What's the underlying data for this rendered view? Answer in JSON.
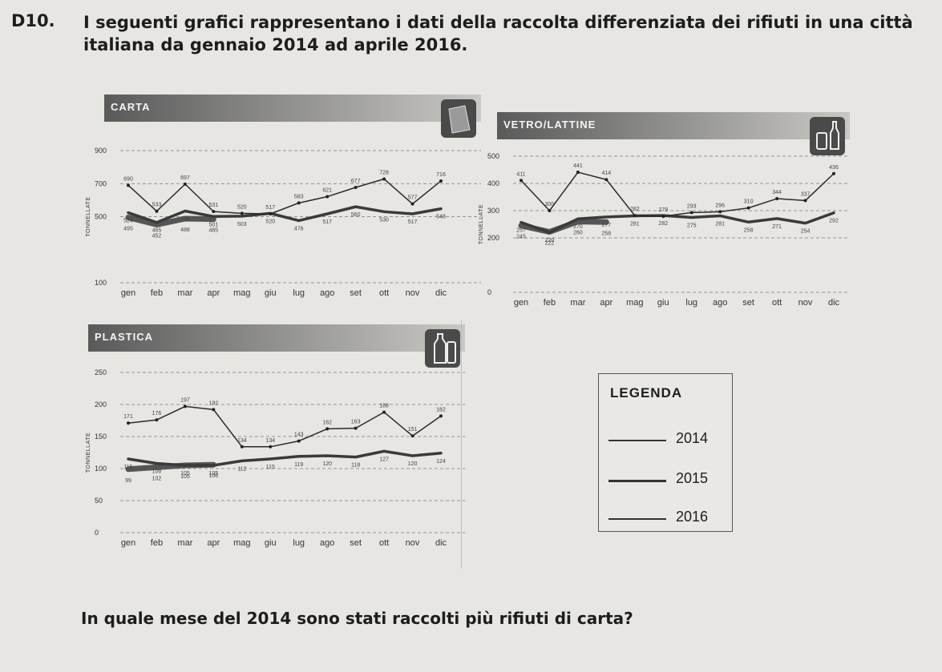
{
  "header": {
    "number": "D10.",
    "text": "I seguenti grafici rappresentano i dati della raccolta differenziata dei rifiuti in una città italiana da gennaio 2014 ad aprile 2016."
  },
  "question": "In quale mese del 2014 sono stati raccolti più rifiuti di carta?",
  "legend": {
    "title": "LEGENDA",
    "items": [
      {
        "year": "2014",
        "weight": 1.5
      },
      {
        "year": "2015",
        "weight": 3
      },
      {
        "year": "2016",
        "weight": 6
      }
    ]
  },
  "chart_data": [
    {
      "type": "line",
      "title": "CARTA",
      "ylabel": "TONNELLATE",
      "ylim": [
        100,
        900
      ],
      "yticks": [
        {
          "v": 900,
          "label": "900"
        },
        {
          "v": 700,
          "label": "700"
        },
        {
          "v": 500,
          "label": "500"
        },
        {
          "v": 100,
          "label": "100"
        }
      ],
      "categories": [
        "gen",
        "feb",
        "mar",
        "apr",
        "mag",
        "giu",
        "lug",
        "ago",
        "set",
        "ott",
        "nov",
        "dic"
      ],
      "series": [
        {
          "name": "2014",
          "values": [
            690,
            533,
            697,
            531,
            520,
            517,
            583,
            621,
            677,
            728,
            577,
            716
          ]
        },
        {
          "name": "2015",
          "values": [
            524,
            465,
            534,
            501,
            503,
            520,
            476,
            517,
            560,
            530,
            517,
            548
          ]
        },
        {
          "name": "2016",
          "values": [
            495,
            452,
            488,
            485,
            null,
            null,
            null,
            null,
            null,
            null,
            null,
            null
          ]
        }
      ]
    },
    {
      "type": "line",
      "title": "VETRO/LATTINE",
      "ylabel": "TONNELLATE",
      "ylim": [
        0,
        500
      ],
      "yticks": [
        {
          "v": 500,
          "label": "500"
        },
        {
          "v": 400,
          "label": "400"
        },
        {
          "v": 300,
          "label": "300"
        },
        {
          "v": 200,
          "label": "200"
        },
        {
          "v": 0,
          "label": "0"
        }
      ],
      "categories": [
        "gen",
        "feb",
        "mar",
        "apr",
        "mag",
        "giu",
        "lug",
        "ago",
        "set",
        "ott",
        "nov",
        "dic"
      ],
      "series": [
        {
          "name": "2014",
          "values": [
            411,
            300,
            441,
            414,
            282,
            279,
            293,
            296,
            310,
            344,
            337,
            436
          ]
        },
        {
          "name": "2015",
          "values": [
            257,
            220,
            270,
            277,
            281,
            282,
            275,
            281,
            258,
            271,
            254,
            292
          ]
        },
        {
          "name": "2016",
          "values": [
            245,
            222,
            260,
            258,
            null,
            null,
            null,
            null,
            null,
            null,
            null,
            null
          ]
        }
      ]
    },
    {
      "type": "line",
      "title": "PLASTICA",
      "ylabel": "TONNELLATE",
      "ylim": [
        0,
        250
      ],
      "yticks": [
        {
          "v": 250,
          "label": "250"
        },
        {
          "v": 200,
          "label": "200"
        },
        {
          "v": 150,
          "label": "150"
        },
        {
          "v": 100,
          "label": "100"
        },
        {
          "v": 50,
          "label": "50"
        },
        {
          "v": 0,
          "label": "0"
        }
      ],
      "categories": [
        "gen",
        "feb",
        "mar",
        "apr",
        "mag",
        "giu",
        "lug",
        "ago",
        "set",
        "ott",
        "nov",
        "dic"
      ],
      "series": [
        {
          "name": "2014",
          "values": [
            171,
            176,
            197,
            192,
            134,
            134,
            143,
            162,
            163,
            188,
            151,
            182
          ]
        },
        {
          "name": "2015",
          "values": [
            115,
            108,
            105,
            105,
            112,
            115,
            119,
            120,
            118,
            127,
            120,
            124
          ]
        },
        {
          "name": "2016",
          "values": [
            99,
            102,
            105,
            106,
            null,
            null,
            null,
            null,
            null,
            null,
            null,
            null
          ]
        }
      ]
    }
  ]
}
